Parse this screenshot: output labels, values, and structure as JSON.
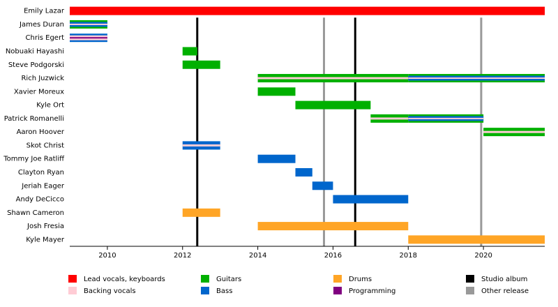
{
  "chart_data": {
    "type": "timeline",
    "xlim": [
      2009,
      2021.63
    ],
    "xticks": [
      2010,
      2012,
      2014,
      2016,
      2018,
      2020
    ],
    "roles": [
      {
        "name": "Lead vocals, keyboards",
        "color": "#ff0000"
      },
      {
        "name": "Backing vocals",
        "color": "#ffccd5"
      },
      {
        "name": "Guitars",
        "color": "#00b000"
      },
      {
        "name": "Bass",
        "color": "#0066cc"
      },
      {
        "name": "Drums",
        "color": "#ffa526"
      },
      {
        "name": "Programming",
        "color": "#800080"
      }
    ],
    "events": [
      {
        "name": "Studio album",
        "color": "#000000",
        "x": [
          2012.39,
          2016.59
        ]
      },
      {
        "name": "Other release",
        "color": "#999999",
        "x": [
          2015.76,
          2019.94
        ]
      }
    ],
    "members": [
      {
        "name": "Emily Lazar",
        "periods": [
          {
            "start": 2009,
            "end": 2021.63,
            "roles": [
              "Lead vocals, keyboards"
            ]
          }
        ]
      },
      {
        "name": "James Duran",
        "periods": [
          {
            "start": 2009,
            "end": 2010,
            "roles": [
              "Guitars",
              "Bass",
              "Backing vocals"
            ]
          }
        ]
      },
      {
        "name": "Chris Egert",
        "periods": [
          {
            "start": 2009,
            "end": 2010,
            "roles": [
              "Bass",
              "Backing vocals",
              "Programming"
            ]
          }
        ]
      },
      {
        "name": "Nobuaki Hayashi",
        "periods": [
          {
            "start": 2012,
            "end": 2012.39,
            "roles": [
              "Guitars"
            ]
          }
        ]
      },
      {
        "name": "Steve Podgorski",
        "periods": [
          {
            "start": 2012,
            "end": 2013,
            "roles": [
              "Guitars"
            ]
          }
        ]
      },
      {
        "name": "Rich Juzwick",
        "periods": [
          {
            "start": 2014,
            "end": 2018,
            "roles": [
              "Guitars",
              "Backing vocals"
            ]
          },
          {
            "start": 2018,
            "end": 2021.63,
            "roles": [
              "Guitars",
              "Bass",
              "Backing vocals"
            ]
          }
        ]
      },
      {
        "name": "Xavier Moreux",
        "periods": [
          {
            "start": 2014,
            "end": 2015,
            "roles": [
              "Guitars"
            ]
          }
        ]
      },
      {
        "name": "Kyle Ort",
        "periods": [
          {
            "start": 2015,
            "end": 2017,
            "roles": [
              "Guitars"
            ]
          }
        ]
      },
      {
        "name": "Patrick Romanelli",
        "periods": [
          {
            "start": 2017,
            "end": 2018,
            "roles": [
              "Guitars",
              "Backing vocals"
            ]
          },
          {
            "start": 2018,
            "end": 2020,
            "roles": [
              "Guitars",
              "Bass",
              "Backing vocals"
            ]
          }
        ]
      },
      {
        "name": "Aaron Hoover",
        "periods": [
          {
            "start": 2020,
            "end": 2021.63,
            "roles": [
              "Guitars",
              "Backing vocals"
            ]
          }
        ]
      },
      {
        "name": "Skot Christ",
        "periods": [
          {
            "start": 2012,
            "end": 2013,
            "roles": [
              "Bass",
              "Backing vocals"
            ]
          }
        ]
      },
      {
        "name": "Tommy Joe Ratliff",
        "periods": [
          {
            "start": 2014,
            "end": 2015,
            "roles": [
              "Bass"
            ]
          }
        ]
      },
      {
        "name": "Clayton Ryan",
        "periods": [
          {
            "start": 2015,
            "end": 2015.45,
            "roles": [
              "Bass"
            ]
          }
        ]
      },
      {
        "name": "Jeriah Eager",
        "periods": [
          {
            "start": 2015.45,
            "end": 2016,
            "roles": [
              "Bass"
            ]
          }
        ]
      },
      {
        "name": "Andy DeCicco",
        "periods": [
          {
            "start": 2016,
            "end": 2018,
            "roles": [
              "Bass"
            ]
          }
        ]
      },
      {
        "name": "Shawn Cameron",
        "periods": [
          {
            "start": 2012,
            "end": 2013,
            "roles": [
              "Drums"
            ]
          }
        ]
      },
      {
        "name": "Josh Fresia",
        "periods": [
          {
            "start": 2014,
            "end": 2018,
            "roles": [
              "Drums"
            ]
          }
        ]
      },
      {
        "name": "Kyle Mayer",
        "periods": [
          {
            "start": 2018,
            "end": 2021.63,
            "roles": [
              "Drums"
            ]
          }
        ]
      }
    ]
  }
}
